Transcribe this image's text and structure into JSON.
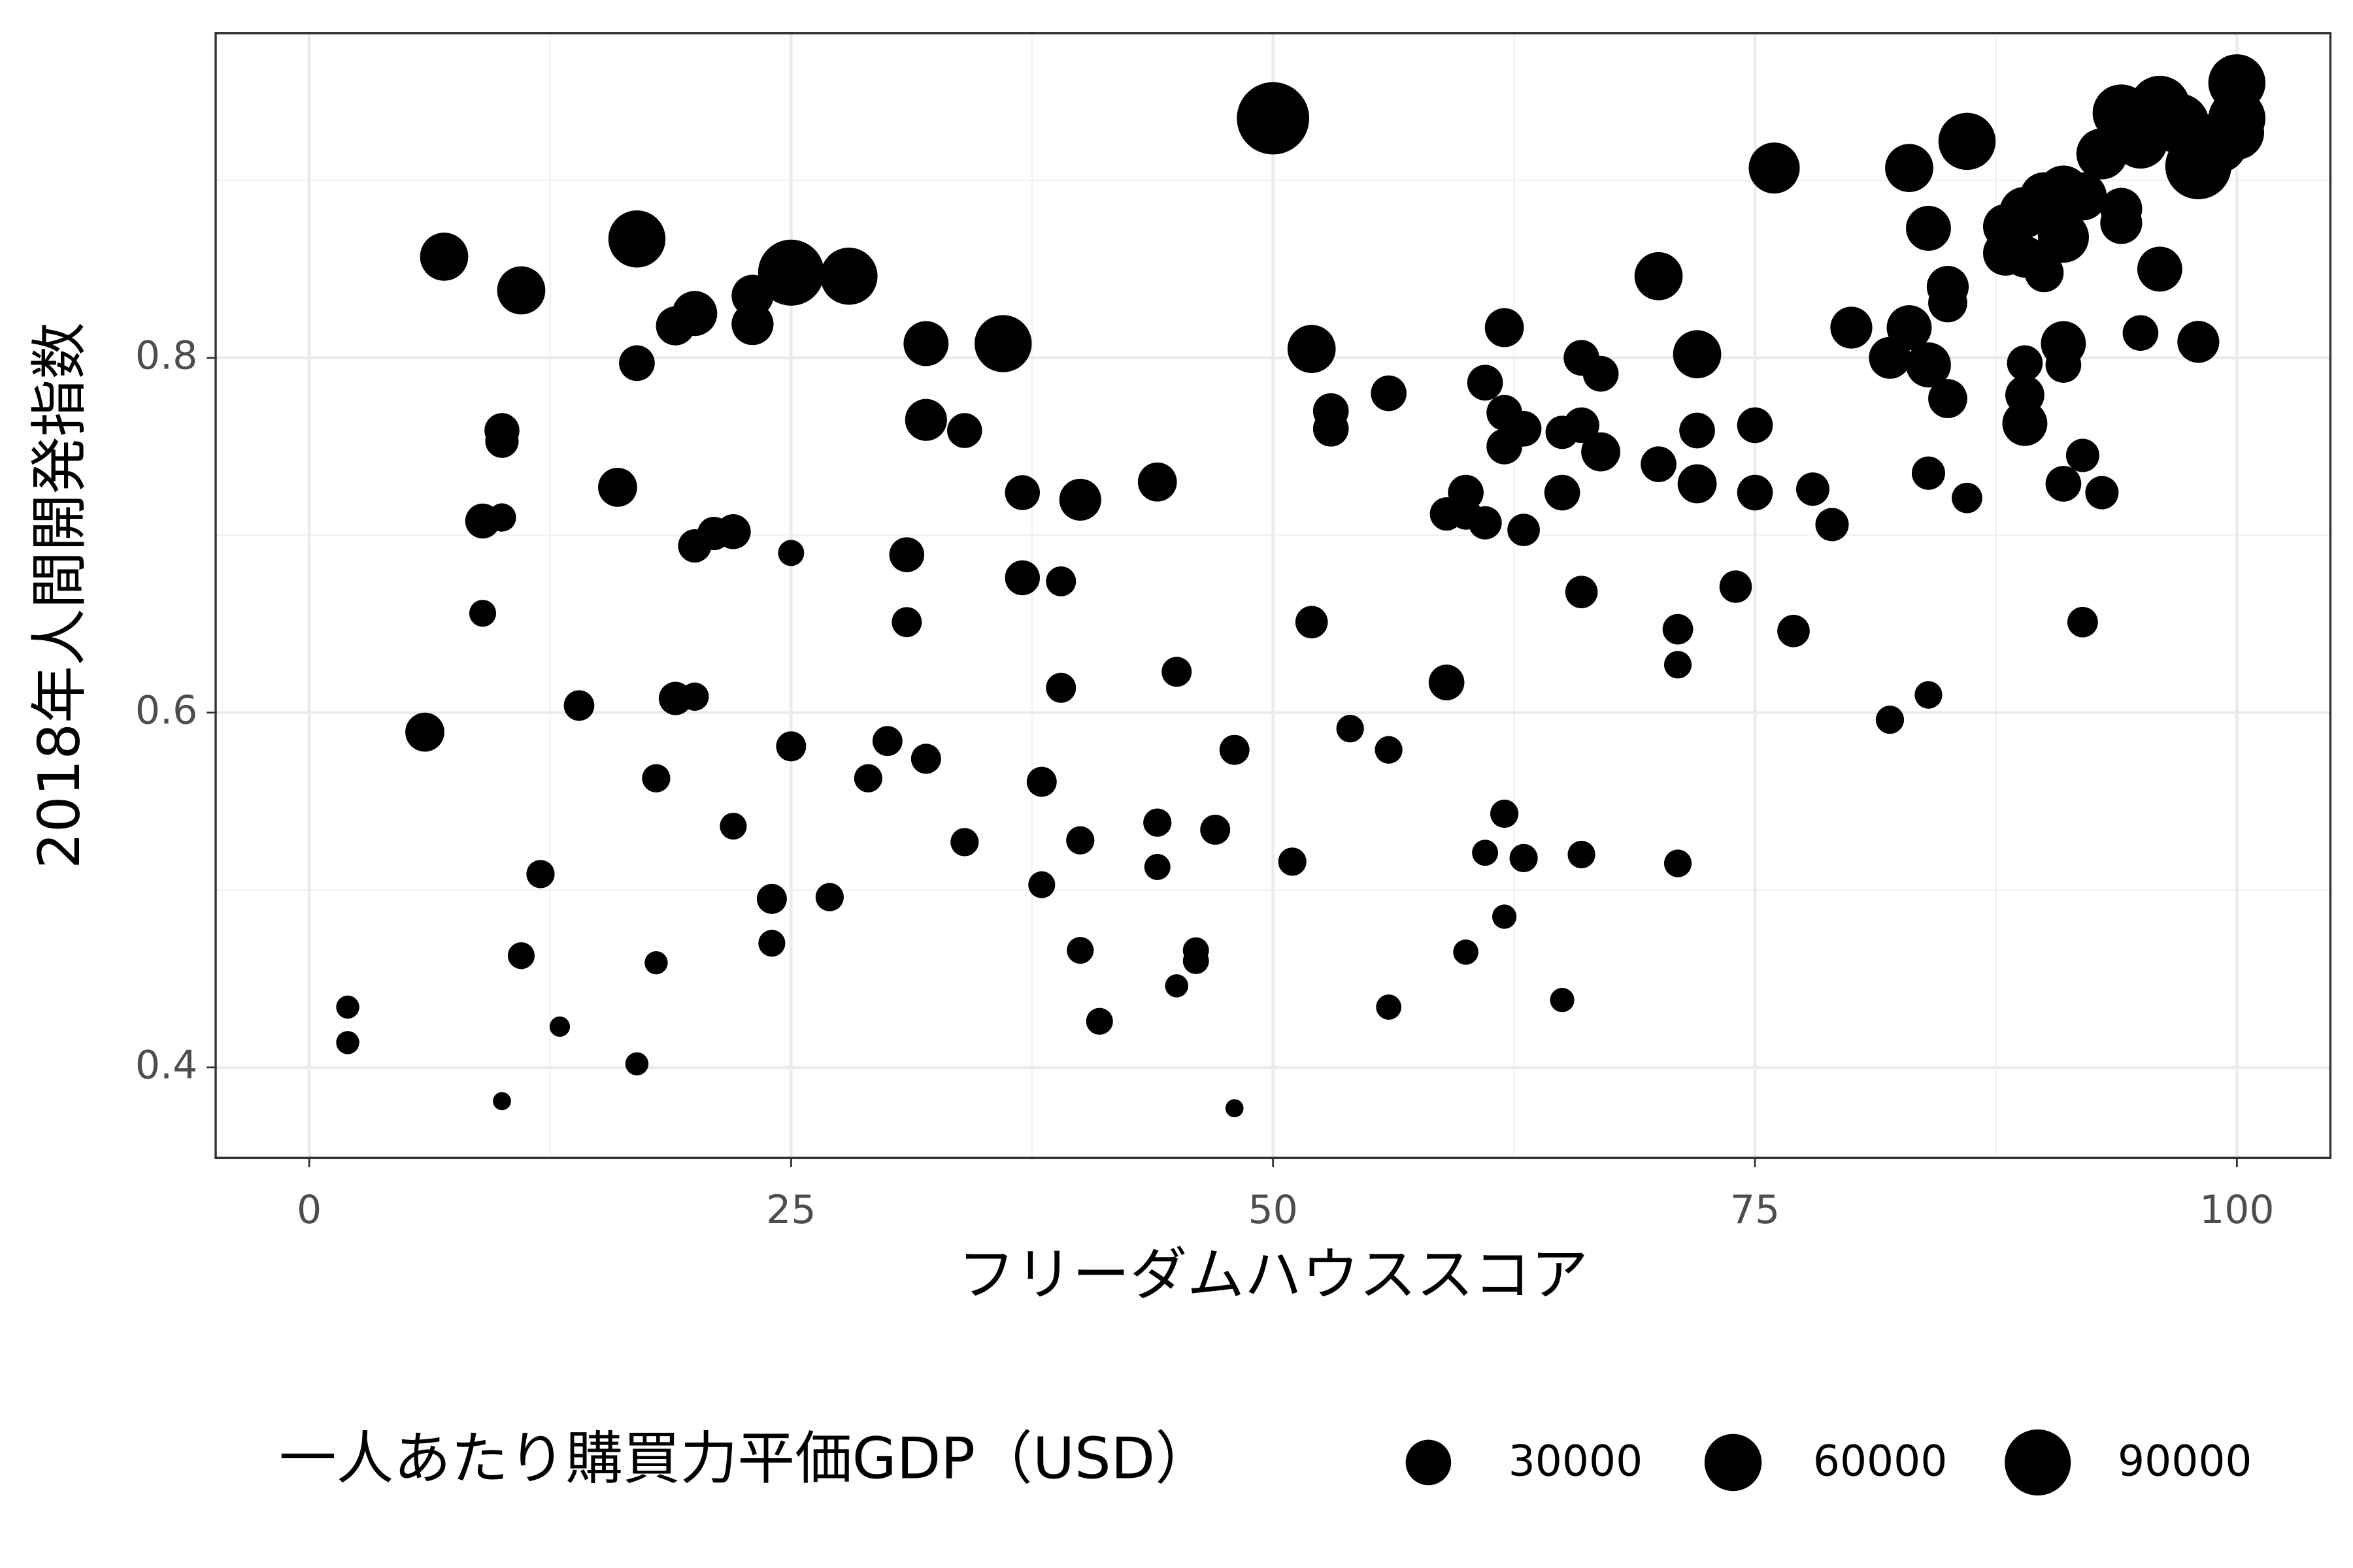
{
  "chart_data": {
    "type": "scatter",
    "x_label": "フリーダムハウススコア",
    "y_label": "2018年人間開発指数",
    "color": "#000000",
    "grid": true,
    "xlim": [
      -4.85,
      104.85
    ],
    "ylim": [
      0.349,
      0.983
    ],
    "xticks": [
      0,
      25,
      50,
      75,
      100
    ],
    "yticks": [
      0.4,
      0.6,
      0.8
    ],
    "size_legend": {
      "title": "一人あたり購買力平価GDP（USD）",
      "values": [
        30000,
        60000,
        90000
      ]
    },
    "x": [
      2,
      2,
      6,
      7,
      9,
      9,
      10,
      10,
      10,
      10,
      11,
      11,
      12,
      13,
      14,
      16,
      17,
      17,
      17,
      18,
      18,
      19,
      19,
      20,
      20,
      20,
      21,
      22,
      22,
      23,
      23,
      24,
      24,
      25,
      25,
      25,
      27,
      28,
      29,
      30,
      31,
      31,
      32,
      32,
      32,
      34,
      34,
      36,
      37,
      37,
      38,
      38,
      39,
      39,
      40,
      40,
      40,
      41,
      44,
      44,
      44,
      45,
      45,
      46,
      46,
      47,
      48,
      48,
      50,
      51,
      52,
      52,
      53,
      53,
      54,
      56,
      56,
      56,
      59,
      59,
      60,
      60,
      60,
      61,
      61,
      61,
      62,
      62,
      62,
      62,
      62,
      63,
      63,
      63,
      65,
      65,
      65,
      66,
      66,
      66,
      66,
      67,
      67,
      70,
      70,
      71,
      71,
      71,
      72,
      72,
      72,
      74,
      75,
      75,
      76,
      77,
      78,
      79,
      80,
      82,
      82,
      83,
      83,
      84,
      84,
      84,
      84,
      85,
      85,
      85,
      86,
      86,
      88,
      88,
      89,
      89,
      89,
      89,
      89,
      90,
      90,
      91,
      91,
      91,
      91,
      92,
      92,
      93,
      91,
      92,
      93,
      94,
      94,
      94,
      95,
      95,
      96,
      96,
      97,
      98,
      98,
      99,
      100,
      100,
      100
    ],
    "values": [
      0.434,
      0.414,
      0.589,
      0.857,
      0.656,
      0.708,
      0.71,
      0.759,
      0.753,
      0.381,
      0.838,
      0.463,
      0.509,
      0.423,
      0.604,
      0.727,
      0.867,
      0.797,
      0.402,
      0.563,
      0.459,
      0.818,
      0.608,
      0.825,
      0.694,
      0.609,
      0.701,
      0.702,
      0.536,
      0.835,
      0.819,
      0.495,
      0.47,
      0.848,
      0.69,
      0.581,
      0.496,
      0.846,
      0.563,
      0.584,
      0.689,
      0.651,
      0.808,
      0.765,
      0.574,
      0.759,
      0.527,
      0.808,
      0.724,
      0.676,
      0.561,
      0.503,
      0.674,
      0.614,
      0.72,
      0.528,
      0.466,
      0.426,
      0.73,
      0.538,
      0.513,
      0.623,
      0.446,
      0.466,
      0.46,
      0.534,
      0.579,
      0.377,
      0.935,
      0.516,
      0.805,
      0.651,
      0.77,
      0.76,
      0.591,
      0.78,
      0.579,
      0.434,
      0.617,
      0.712,
      0.724,
      0.712,
      0.465,
      0.786,
      0.707,
      0.521,
      0.817,
      0.769,
      0.75,
      0.543,
      0.485,
      0.76,
      0.703,
      0.518,
      0.758,
      0.724,
      0.438,
      0.8,
      0.762,
      0.668,
      0.52,
      0.791,
      0.747,
      0.846,
      0.74,
      0.647,
      0.627,
      0.515,
      0.802,
      0.759,
      0.729,
      0.671,
      0.762,
      0.724,
      0.907,
      0.646,
      0.726,
      0.706,
      0.817,
      0.8,
      0.596,
      0.907,
      0.817,
      0.873,
      0.796,
      0.735,
      0.61,
      0.84,
      0.831,
      0.777,
      0.922,
      0.721,
      0.874,
      0.859,
      0.882,
      0.857,
      0.797,
      0.779,
      0.763,
      0.891,
      0.848,
      0.868,
      0.808,
      0.796,
      0.729,
      0.745,
      0.651,
      0.724,
      0.894,
      0.891,
      0.915,
      0.938,
      0.876,
      0.884,
      0.814,
      0.922,
      0.942,
      0.85,
      0.932,
      0.908,
      0.809,
      0.921,
      0.955,
      0.935,
      0.927
    ],
    "sizes": [
      2000,
      2000,
      18000,
      36000,
      4000,
      12000,
      5000,
      12000,
      10000,
      1000,
      36000,
      4000,
      5000,
      1200,
      7000,
      18000,
      60000,
      13000,
      2000,
      5000,
      2000,
      18000,
      10000,
      29000,
      10000,
      5000,
      10000,
      12000,
      4000,
      23000,
      23000,
      6500,
      4000,
      90000,
      3500,
      6500,
      5000,
      60000,
      5000,
      6500,
      12000,
      6500,
      29000,
      23000,
      6500,
      12000,
      5000,
      60000,
      12000,
      12000,
      6500,
      4000,
      6500,
      6500,
      23000,
      5000,
      4000,
      4000,
      18000,
      5000,
      3500,
      6500,
      2000,
      3500,
      3500,
      6500,
      6500,
      1000,
      115000,
      5000,
      36000,
      9000,
      13000,
      13000,
      4500,
      13000,
      4500,
      3000,
      13000,
      10000,
      13000,
      8000,
      3000,
      13000,
      10000,
      3500,
      18000,
      13000,
      13000,
      5000,
      2500,
      13000,
      9000,
      5000,
      10000,
      13000,
      2500,
      13000,
      13000,
      9000,
      4500,
      13000,
      18000,
      36000,
      13000,
      7000,
      4500,
      4500,
      36000,
      13000,
      18000,
      9000,
      13000,
      13000,
      43000,
      9000,
      10000,
      10000,
      23000,
      23000,
      5000,
      36000,
      29000,
      29000,
      29000,
      10000,
      4500,
      23000,
      18000,
      18000,
      60000,
      7000,
      29000,
      29000,
      43000,
      23000,
      13000,
      18000,
      29000,
      36000,
      18000,
      43000,
      29000,
      13000,
      13000,
      10000,
      7000,
      10000,
      43000,
      36000,
      43000,
      60000,
      23000,
      23000,
      13000,
      52000,
      70000,
      29000,
      70000,
      90000,
      23000,
      70000,
      60000,
      60000,
      52000
    ]
  }
}
